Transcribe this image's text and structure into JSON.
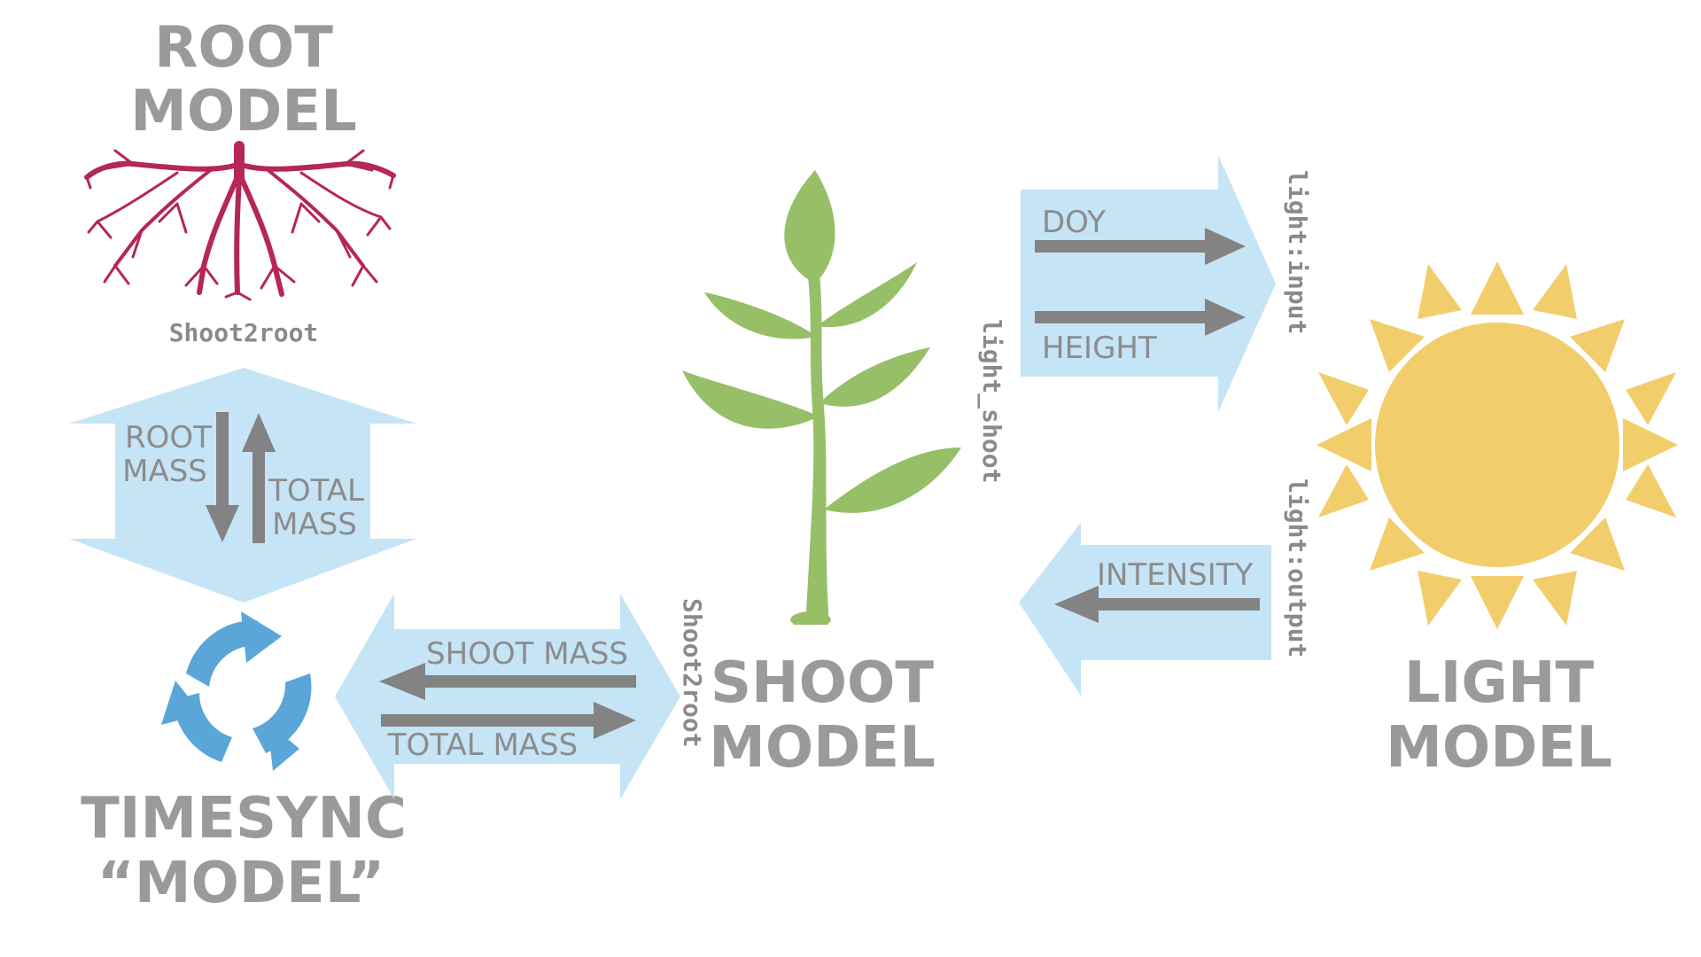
{
  "models": {
    "root": {
      "line1": "ROOT",
      "line2": "MODEL"
    },
    "timesync": {
      "line1": "TIMESYNC",
      "line2": "“MODEL”"
    },
    "shoot": {
      "line1": "SHOOT",
      "line2": "MODEL"
    },
    "light": {
      "line1": "LIGHT",
      "line2": "MODEL"
    }
  },
  "ports": {
    "root_shoot2root": "Shoot2root",
    "shoot_shoot2root": "Shoot2root",
    "shoot_light": "light_shoot",
    "light_input": "light:input",
    "light_output": "light:output"
  },
  "flows": {
    "root_mass": {
      "line1": "ROOT",
      "line2": "MASS"
    },
    "total_mass_up": {
      "line1": "TOTAL",
      "line2": "MASS"
    },
    "shoot_mass": "SHOOT MASS",
    "total_mass": "TOTAL MASS",
    "doy": "DOY",
    "height": "HEIGHT",
    "intensity": "INTENSITY"
  },
  "colors": {
    "root": "#b5265a",
    "leaf": "#96bf68",
    "stem": "#96bf68",
    "sun_core": "#f2cd6b",
    "sun_rays": "#f2cd6b",
    "cycle": "#5aa6d8",
    "flow_band": "#c5e4f6",
    "arrow": "#838383",
    "text": "#9a9a9a"
  }
}
